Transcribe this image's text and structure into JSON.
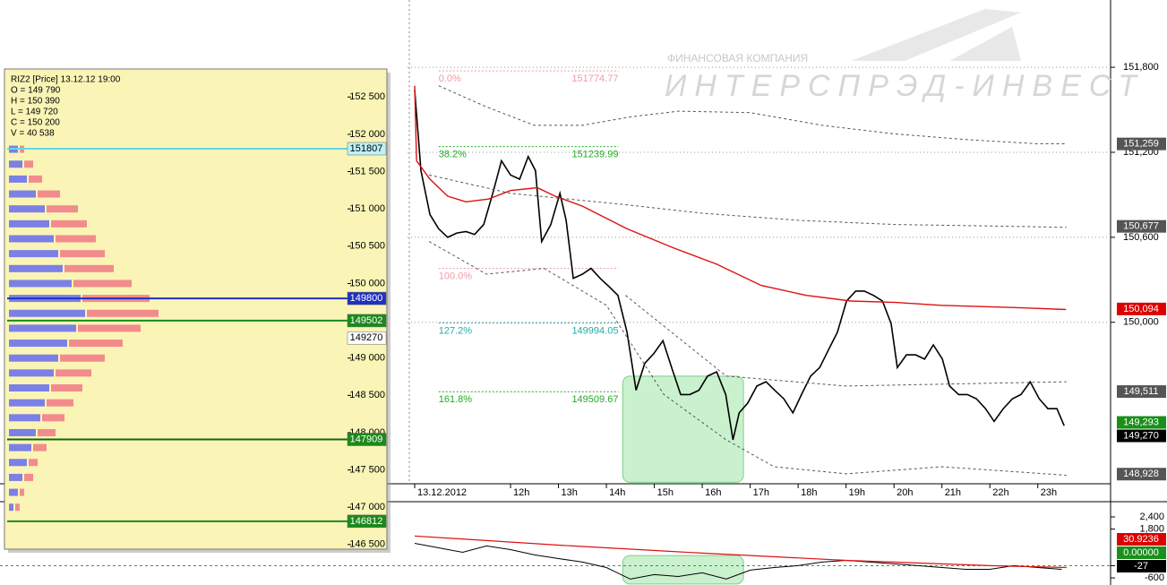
{
  "chart_data": [
    {
      "type": "line",
      "xlim": [
        10,
        24.5
      ],
      "xticks": [
        {
          "value": 10,
          "label": "13.12.2012"
        },
        {
          "value": 12,
          "label": "12h"
        },
        {
          "value": 13,
          "label": "13h"
        },
        {
          "value": 14,
          "label": "14h"
        },
        {
          "value": 15,
          "label": "15h"
        },
        {
          "value": 16,
          "label": "16h"
        },
        {
          "value": 17,
          "label": "17h"
        },
        {
          "value": 18,
          "label": "18h"
        },
        {
          "value": 19,
          "label": "19h"
        },
        {
          "value": 20,
          "label": "20h"
        },
        {
          "value": 21,
          "label": "21h"
        },
        {
          "value": 22,
          "label": "22h"
        },
        {
          "value": 23,
          "label": "23h"
        }
      ],
      "ylim": [
        148860,
        152275
      ],
      "yticks": [
        {
          "value": 151800,
          "label": "151,800"
        },
        {
          "value": 151200,
          "label": "151,200"
        },
        {
          "value": 150600,
          "label": "150,600"
        },
        {
          "value": 150000,
          "label": "150,000"
        }
      ],
      "grid": true,
      "series": [
        {
          "color": "#000000",
          "style": "solid",
          "width": 1.6,
          "x": [
            10.0,
            10.13,
            10.32,
            10.5,
            10.69,
            10.88,
            11.07,
            11.25,
            11.44,
            11.63,
            11.81,
            12.0,
            12.19,
            12.37,
            12.52,
            12.65,
            12.84,
            13.03,
            13.16,
            13.31,
            13.5,
            13.68,
            13.87,
            14.06,
            14.24,
            14.43,
            14.62,
            14.8,
            14.99,
            15.18,
            15.36,
            15.55,
            15.74,
            15.93,
            16.11,
            16.3,
            16.49,
            16.64,
            16.77,
            16.95,
            17.14,
            17.33,
            17.51,
            17.7,
            17.89,
            18.07,
            18.26,
            18.45,
            18.64,
            18.82,
            19.01,
            19.2,
            19.38,
            19.57,
            19.76,
            19.94,
            20.07,
            20.26,
            20.45,
            20.64,
            20.82,
            21.01,
            21.16,
            21.35,
            21.53,
            21.72,
            21.91,
            22.09,
            22.28,
            22.47,
            22.65,
            22.84,
            23.03,
            23.21,
            23.4,
            23.55
          ],
          "values": [
            151640,
            151070,
            150760,
            150660,
            150600,
            150630,
            150640,
            150620,
            150690,
            150910,
            151140,
            151040,
            151010,
            151170,
            151070,
            150570,
            150690,
            150910,
            150720,
            150310,
            150340,
            150380,
            150310,
            150250,
            150190,
            149930,
            149520,
            149710,
            149780,
            149870,
            149680,
            149490,
            149490,
            149520,
            149620,
            149650,
            149490,
            149170,
            149360,
            149430,
            149550,
            149580,
            149520,
            149460,
            149360,
            149490,
            149620,
            149680,
            149810,
            149930,
            150150,
            150220,
            150220,
            150190,
            150150,
            149990,
            149680,
            149770,
            149770,
            149740,
            149840,
            149740,
            149550,
            149490,
            149490,
            149460,
            149390,
            149300,
            149390,
            149460,
            149490,
            149580,
            149460,
            149390,
            149390,
            149270
          ]
        },
        {
          "color": "#dd1111",
          "style": "solid",
          "width": 1.4,
          "x": [
            10.0,
            10.04,
            10.32,
            10.69,
            11.07,
            11.54,
            12.0,
            12.56,
            12.93,
            13.5,
            14.43,
            15.36,
            16.3,
            17.23,
            18.17,
            19.1,
            20.04,
            20.97,
            21.91,
            22.84,
            23.59
          ],
          "values": [
            151670,
            151140,
            151010,
            150890,
            150850,
            150870,
            150930,
            150950,
            150890,
            150820,
            150660,
            150530,
            150410,
            150260,
            150190,
            150150,
            150140,
            150120,
            150110,
            150100,
            150090
          ]
        },
        {
          "color": "#555555",
          "style": "dashed",
          "width": 1,
          "x": [
            10.5,
            11.5,
            12.5,
            13.5,
            14.5,
            15.5,
            17,
            18.5,
            20,
            21.5,
            23,
            23.6
          ],
          "values": [
            151670,
            151520,
            151390,
            151390,
            151450,
            151490,
            151480,
            151390,
            151330,
            151290,
            151260,
            151260
          ]
        },
        {
          "color": "#555555",
          "style": "dashed",
          "width": 1,
          "x": [
            10.3,
            12,
            14.4,
            16,
            18,
            20,
            22,
            23.6
          ],
          "values": [
            151040,
            150910,
            150830,
            150770,
            150720,
            150690,
            150680,
            150670
          ]
        },
        {
          "color": "#555555",
          "style": "dashed",
          "width": 1,
          "x": [
            14.4,
            16.5,
            19,
            23.6
          ],
          "values": [
            150190,
            149620,
            149550,
            149580
          ]
        },
        {
          "color": "#555555",
          "style": "dashed",
          "width": 1,
          "x": [
            10.3,
            11.5,
            12.7,
            14.0,
            15.2,
            16.5,
            17.5,
            19,
            21,
            23.6
          ],
          "values": [
            150570,
            150340,
            150380,
            150120,
            149490,
            149170,
            148980,
            148930,
            148980,
            148920
          ]
        }
      ],
      "fib_span": [
        10.5,
        14.25
      ],
      "fib_levels": [
        {
          "label": "0.0%",
          "value": 151774.77,
          "color": "#f09aa4"
        },
        {
          "label": "38.2%",
          "value": 151239.99,
          "color": "#22aa22"
        },
        {
          "label": "100.0%",
          "value": 150380,
          "color": "#f09aa4",
          "show_price": false
        },
        {
          "label": "127.2%",
          "value": 149994.05,
          "color": "#22aaaa"
        },
        {
          "label": "161.8%",
          "value": 149509.67,
          "color": "#22aa22"
        }
      ],
      "price_tags": [
        {
          "value": 151259,
          "label": "151,259",
          "color": "#555555"
        },
        {
          "value": 150677,
          "label": "150,677",
          "color": "#555555"
        },
        {
          "value": 150094,
          "label": "150,094",
          "color": "#dd0000"
        },
        {
          "value": 149511,
          "label": "149,511",
          "color": "#555555"
        },
        {
          "value": 149293,
          "label": "149,293",
          "color": "#1a8f1a"
        },
        {
          "value": 149270,
          "label": "149,270",
          "color": "#000000"
        },
        {
          "value": 148928,
          "label": "148,928",
          "color": "#555555"
        }
      ],
      "highlight": {
        "x": [
          14.34,
          16.86
        ],
        "y": [
          148870,
          149620
        ],
        "color": "#a6e8ad"
      },
      "watermark": {
        "line1": "ФИНАНСОВАЯ КОМПАНИЯ",
        "line2": "ИНТЕРСПРЭД-ИНВЕСТ"
      }
    },
    {
      "type": "line",
      "xlim": [
        10,
        24.5
      ],
      "ylim": [
        -950,
        3060
      ],
      "yticks": [
        {
          "value": 2400,
          "label": "2,400"
        },
        {
          "value": 1800,
          "label": "1,800"
        },
        0,
        -600
      ],
      "zero_line_color": "#22aa22",
      "series": [
        {
          "color": "#000000",
          "style": "solid",
          "width": 1,
          "x": [
            10.0,
            10.5,
            11.0,
            11.5,
            12.0,
            12.5,
            13.0,
            13.5,
            14.0,
            14.5,
            15.0,
            15.5,
            16.0,
            16.5,
            17.0,
            17.5,
            18.0,
            18.5,
            19.0,
            19.5,
            20.0,
            20.5,
            21.0,
            21.5,
            22.0,
            22.5,
            23.0,
            23.5
          ],
          "values": [
            1100,
            880,
            660,
            970,
            790,
            530,
            350,
            180,
            -90,
            -660,
            -440,
            -530,
            -350,
            -660,
            -220,
            -90,
            0,
            180,
            260,
            180,
            90,
            0,
            -90,
            -180,
            -180,
            0,
            -90,
            -180
          ]
        },
        {
          "color": "#dd1111",
          "style": "solid",
          "width": 1.2,
          "x": [
            10.0,
            13.0,
            16.0,
            19.0,
            22.0,
            23.6
          ],
          "values": [
            1460,
            1010,
            620,
            260,
            0,
            -90
          ]
        }
      ],
      "tags": [
        {
          "value": 30.9236,
          "color": "#dd0000"
        },
        {
          "value": 0,
          "label": "0.00000",
          "color": "#1a8f1a"
        },
        {
          "value": -27,
          "color": "#000000"
        }
      ],
      "highlight": {
        "x": [
          14.34,
          16.86
        ],
        "y": [
          -900,
          500
        ],
        "color": "#a6e8ad"
      }
    },
    {
      "type": "profile",
      "title": "RIZ2 [Price] 13.12.12 19:00",
      "ohlcv": [
        "O = 149 790",
        "H = 150 390",
        "L = 149 720",
        "C = 150 200",
        "V = 40 538"
      ],
      "ylim": [
        146450,
        152840
      ],
      "yticks": [
        {
          "value": 152500,
          "label": "152 500"
        },
        {
          "value": 152000,
          "label": "152 000"
        },
        {
          "value": 151500,
          "label": "151 500"
        },
        {
          "value": 151000,
          "label": "151 000"
        },
        {
          "value": 150500,
          "label": "150 500"
        },
        {
          "value": 150000,
          "label": "150 000"
        },
        {
          "value": 149500,
          "label": "149 500"
        },
        {
          "value": 149000,
          "label": "149 000"
        },
        {
          "value": 148500,
          "label": "148 500"
        },
        {
          "value": 148000,
          "label": "148 000"
        },
        {
          "value": 147500,
          "label": "147 500"
        },
        {
          "value": 147000,
          "label": "147 000"
        },
        {
          "value": 146500,
          "label": "146 500"
        }
      ],
      "levels": [
        151800,
        151600,
        151400,
        151200,
        151000,
        150800,
        150600,
        150400,
        150200,
        150000,
        149800,
        149600,
        149400,
        149200,
        149000,
        148800,
        148600,
        148400,
        148200,
        148000,
        147800,
        147600,
        147400,
        147200,
        147000
      ],
      "series": [
        {
          "color": "#7b80e6",
          "values": [
            2,
            3,
            4,
            6,
            8,
            9,
            10,
            11,
            12,
            14,
            16,
            17,
            15,
            13,
            11,
            10,
            9,
            8,
            7,
            6,
            5,
            4,
            3,
            2,
            1
          ]
        },
        {
          "color": "#f28c8c",
          "values": [
            1,
            2,
            3,
            5,
            7,
            8,
            9,
            10,
            11,
            13,
            15,
            16,
            14,
            12,
            10,
            8,
            7,
            6,
            5,
            4,
            3,
            2,
            2,
            1,
            1
          ]
        }
      ],
      "level_tags": [
        {
          "value": 151807,
          "color": "#bff0f8",
          "text_color": "#000000",
          "line": "#5fd8e8"
        },
        {
          "value": 149800,
          "color": "#2030c0",
          "text_color": "#ffffff",
          "line": "#2030c0"
        },
        {
          "value": 149502,
          "color": "#1a8a1a",
          "text_color": "#ffffff",
          "line": "#1a8a1a"
        },
        {
          "value": 149270,
          "color": "#ffffff",
          "text_color": "#000000"
        },
        {
          "value": 147909,
          "color": "#1a8a1a",
          "text_color": "#ffffff",
          "line": "#116611"
        },
        {
          "value": 146812,
          "color": "#1a8a1a",
          "text_color": "#ffffff",
          "line": "#1a8a1a"
        }
      ]
    }
  ]
}
